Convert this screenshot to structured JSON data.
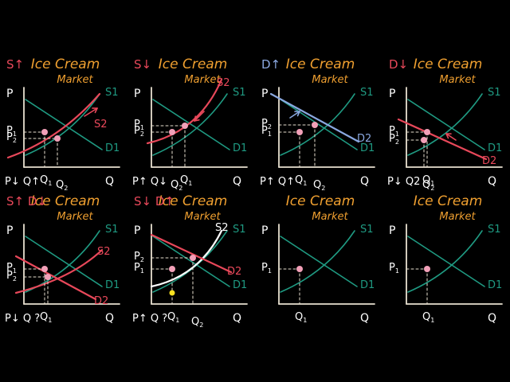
{
  "title_line1": "Ice Cream",
  "title_line2": "Market",
  "colors": {
    "title": "#f0a030",
    "axis": "#e8e0d0",
    "text": "#ffffff",
    "green": "#1f9a82",
    "red": "#e8485a",
    "blue": "#8aa8e0",
    "white_curve": "#ffffff",
    "point": "#f2a0b8",
    "yellow": "#f8e020"
  },
  "panels": [
    {
      "note": "S↑",
      "labels": {
        "p": "P",
        "q": "Q",
        "p1": "P1",
        "p2": "P2",
        "q1": "Q1",
        "q2": "Q2",
        "s1": "S1",
        "d1": "D1",
        "s2": "S2"
      },
      "bottom": "P↓ Q↑"
    },
    {
      "note": "S↓",
      "labels": {
        "p": "P",
        "q": "Q",
        "p1": "P1",
        "p2": "P2",
        "q1": "Q1",
        "q2": "Q2",
        "s1": "S1",
        "d1": "D1",
        "s2": "S2"
      },
      "bottom": "P↑ Q↓"
    },
    {
      "note": "D↑",
      "labels": {
        "p": "P",
        "q": "Q",
        "p1": "P1",
        "p2": "P2",
        "q1": "Q1",
        "q2": "Q2",
        "s1": "S1",
        "d1": "D1",
        "d2": "D2"
      },
      "bottom": "P↑ Q↑"
    },
    {
      "note": "D↓",
      "labels": {
        "p": "P",
        "q": "Q",
        "p1": "P1",
        "p2": "P2",
        "q1": "Q1",
        "q2": "Q2",
        "s1": "S1",
        "d1": "D1",
        "d2": "D2"
      },
      "bottom": "P↓ Q2"
    },
    {
      "note": "S↑ D↓",
      "labels": {
        "p": "P",
        "q": "Q",
        "p1": "P1",
        "p2": "P2",
        "q1": "Q1",
        "s1": "S1",
        "d1": "D1",
        "s2": "S2",
        "d2": "D2"
      },
      "bottom": "P↓ Q ?"
    },
    {
      "note": "S↓ D↑",
      "labels": {
        "p": "P",
        "q": "Q",
        "p1": "P1",
        "p2": "P2",
        "q1": "Q1",
        "q2": "Q2",
        "s1": "S1",
        "d1": "D1",
        "s2": "S2",
        "d2": "D2"
      },
      "bottom": "P↑ Q ?"
    },
    {
      "labels": {
        "p": "P",
        "q": "Q",
        "p1": "P1",
        "q1": "Q1",
        "s1": "S1",
        "d1": "D1"
      }
    },
    {
      "labels": {
        "p": "P",
        "q": "Q",
        "p1": "P1",
        "q1": "Q1",
        "s1": "S1",
        "d1": "D1"
      }
    }
  ]
}
